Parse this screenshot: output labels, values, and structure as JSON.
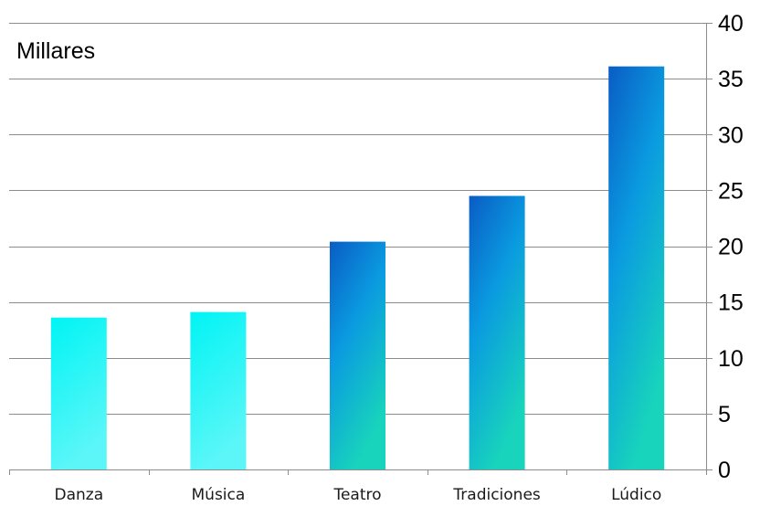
{
  "chart_data": {
    "type": "bar",
    "unit_label": "Millares",
    "categories": [
      "Danza",
      "Música",
      "Teatro",
      "Tradiciones",
      "Lúdico"
    ],
    "values": [
      13.6,
      14.1,
      20.4,
      24.5,
      36.1
    ],
    "ylim": [
      0,
      40
    ],
    "yticks": [
      0,
      5,
      10,
      15,
      20,
      25,
      30,
      35,
      40
    ],
    "y_axis_position": "right",
    "grid": true,
    "legend": "none",
    "bar_styles": [
      "light",
      "light",
      "dark",
      "dark",
      "dark"
    ],
    "colors": {
      "light_top": "#00f4f4",
      "light_bottom": "#5cf6f8",
      "dark_top": "#0a5cc4",
      "dark_mid": "#0a9ae0",
      "dark_bottom": "#18d4bc",
      "grid": "#8c8c8c"
    }
  }
}
